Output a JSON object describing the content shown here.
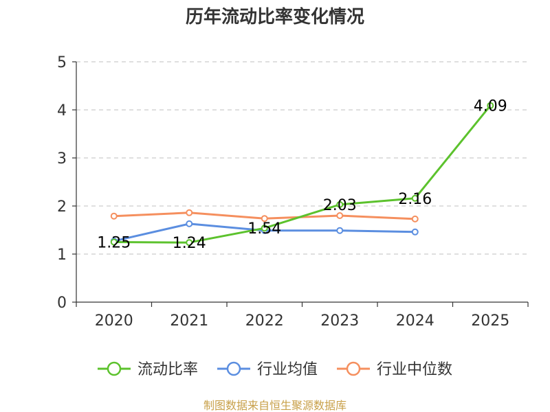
{
  "chart_data": {
    "type": "line",
    "title": "历年流动比率变化情况",
    "categories": [
      "2020",
      "2021",
      "2022",
      "2023",
      "2024",
      "2025"
    ],
    "ylim": [
      0,
      5
    ],
    "yticks": [
      0,
      1,
      2,
      3,
      4,
      5
    ],
    "grid": true,
    "series": [
      {
        "name": "流动比率",
        "color": "#5cc22d",
        "values": [
          1.25,
          1.24,
          1.54,
          2.03,
          2.16,
          4.09
        ],
        "labels": [
          "1.25",
          "1.24",
          "1.54",
          "2.03",
          "2.16",
          "4.09"
        ]
      },
      {
        "name": "行业均值",
        "color": "#5b8ee0",
        "values": [
          1.27,
          1.63,
          1.49,
          1.49,
          1.46,
          null
        ]
      },
      {
        "name": "行业中位数",
        "color": "#f58f5e",
        "values": [
          1.79,
          1.86,
          1.74,
          1.8,
          1.73,
          null
        ]
      }
    ],
    "legend_position": "bottom"
  },
  "source_text": "制图数据来自恒生聚源数据库"
}
